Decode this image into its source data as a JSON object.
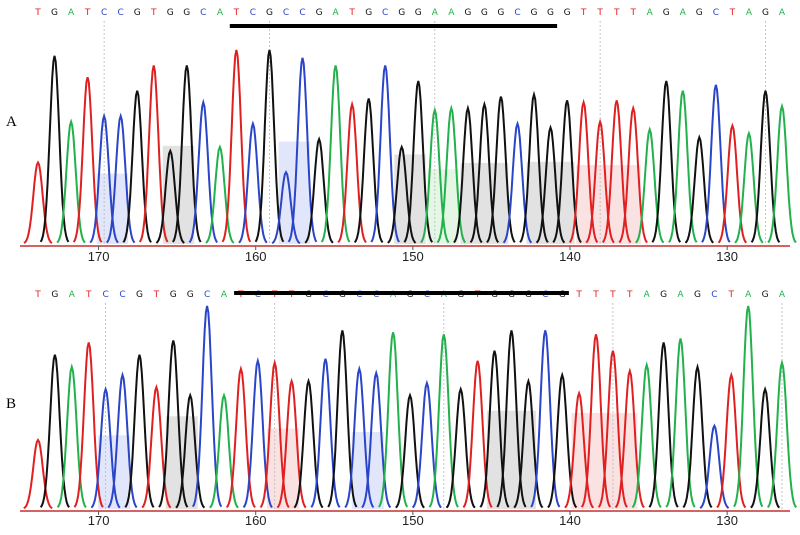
{
  "colors": {
    "A": "#22b14c",
    "C": "#2a45c8",
    "G": "#111111",
    "T": "#e02020"
  },
  "chart_data": {
    "type": "chromatogram",
    "panels": [
      {
        "label": "A",
        "sequence": "TGATCCGTGGCATCGCCGATGCGGAAGGGCGGGTTTTAGAGCTAGA",
        "heights": [
          0.42,
          0.97,
          0.63,
          0.86,
          0.66,
          0.66,
          0.79,
          0.92,
          0.48,
          0.92,
          0.73,
          0.5,
          1.0,
          0.62,
          1.0,
          0.37,
          0.96,
          0.54,
          0.92,
          0.72,
          0.75,
          0.92,
          0.5,
          0.84,
          0.69,
          0.7,
          0.7,
          0.72,
          0.76,
          0.62,
          0.77,
          0.6,
          0.74,
          0.73,
          0.63,
          0.74,
          0.7,
          0.59,
          0.84,
          0.79,
          0.55,
          0.82,
          0.61,
          0.57,
          0.79,
          0.71
        ],
        "underline_start": 12,
        "underline_end": 31,
        "x_ticks": [
          170,
          160,
          150,
          140,
          130
        ],
        "x_range": [
          175,
          126
        ]
      },
      {
        "label": "B",
        "sequence": "TGATCCGTGGCATCTTGCGCCAGCAGTGGGCGTTTTAGAGCTAGA",
        "heights": [
          0.34,
          0.76,
          0.7,
          0.82,
          0.59,
          0.66,
          0.76,
          0.6,
          0.83,
          0.56,
          1.0,
          0.56,
          0.69,
          0.73,
          0.72,
          0.63,
          0.63,
          0.74,
          0.88,
          0.69,
          0.67,
          0.87,
          0.56,
          0.62,
          0.86,
          0.59,
          0.73,
          0.78,
          0.88,
          0.63,
          0.88,
          0.66,
          0.57,
          0.86,
          0.78,
          0.68,
          0.71,
          0.82,
          0.84,
          0.7,
          0.41,
          0.66,
          1.0,
          0.59,
          0.72
        ],
        "underline_start": 12,
        "underline_end": 31,
        "x_ticks": [
          170,
          160,
          150,
          140,
          130
        ],
        "x_range": [
          175,
          126
        ]
      }
    ]
  }
}
